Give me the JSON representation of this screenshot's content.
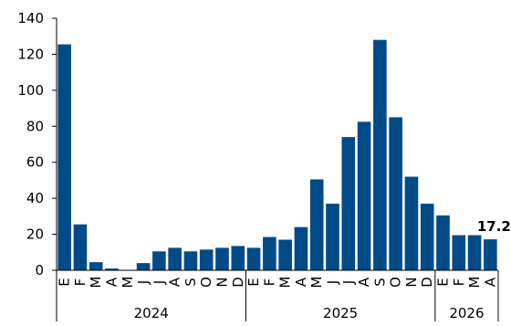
{
  "chart_data": {
    "type": "bar",
    "title": "",
    "xlabel": "",
    "ylabel": "",
    "ylim": [
      0,
      140
    ],
    "yticks": [
      0,
      20,
      40,
      60,
      80,
      100,
      120,
      140
    ],
    "grid": false,
    "bar_color": "#004b87",
    "categories": [
      "E",
      "F",
      "M",
      "A",
      "M",
      "J",
      "J",
      "A",
      "S",
      "O",
      "N",
      "D",
      "E",
      "F",
      "M",
      "A",
      "M",
      "J",
      "J",
      "A",
      "S",
      "O",
      "N",
      "D",
      "E",
      "F",
      "M",
      "A"
    ],
    "values": [
      125.5,
      25.5,
      4.5,
      1,
      0,
      4,
      10.5,
      12.5,
      10.5,
      11.5,
      12.5,
      13.5,
      12.5,
      18.5,
      17,
      24,
      50.5,
      37,
      74,
      82.5,
      128,
      85,
      52,
      37,
      30.5,
      19.5,
      19.5,
      17.2
    ],
    "year_groups": [
      {
        "label": "2024",
        "count": 12
      },
      {
        "label": "2025",
        "count": 12
      },
      {
        "label": "2026",
        "count": 4
      }
    ],
    "annotations": [
      {
        "index": 27,
        "text": "17.2"
      }
    ]
  }
}
